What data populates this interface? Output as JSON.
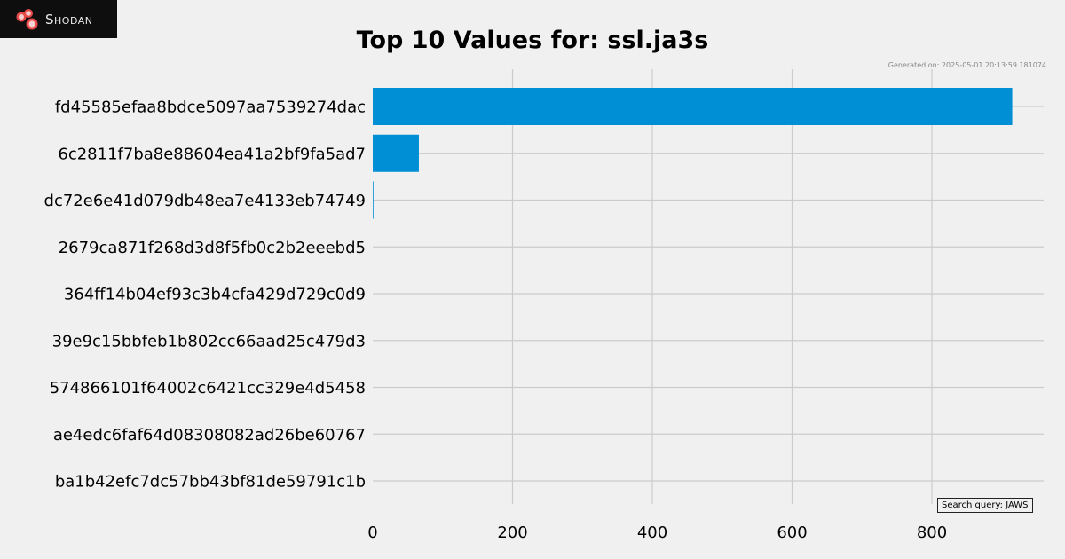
{
  "brand": {
    "name": "Shodan",
    "logo_icon": "shodan-logo-icon",
    "logo_colors": [
      "#e84a4a",
      "#f7b0b0"
    ]
  },
  "generated_text": "Generated on: 2025-05-01 20:13:59.181074",
  "query_text": "Search query: JAWS",
  "chart_data": {
    "type": "bar",
    "orientation": "horizontal",
    "title": "Top 10 Values for: ssl.ja3s",
    "categories": [
      "fd45585efaa8bdce5097aa7539274dac",
      "6c2811f7ba8e88604ea41a2bf9fa5ad7",
      "dc72e6e41d079db48ea7e4133eb74749",
      "2679ca871f268d3d8f5fb0c2b2eeebd5",
      "364ff14b04ef93c3b4cfa429d729c0d9",
      "39e9c15bbfeb1b802cc66aad25c479d3",
      "574866101f64002c6421cc329e4d5458",
      "ae4edc6faf64d08308082ad26be60767",
      "ba1b42efc7dc57bb43bf81de59791c1b"
    ],
    "values": [
      915,
      66,
      1,
      0,
      0,
      0,
      0,
      0,
      0
    ],
    "xlim": [
      0,
      960
    ],
    "xticks": [
      0,
      200,
      400,
      600,
      800
    ],
    "grid": true,
    "bar_color": "#008fd5"
  }
}
